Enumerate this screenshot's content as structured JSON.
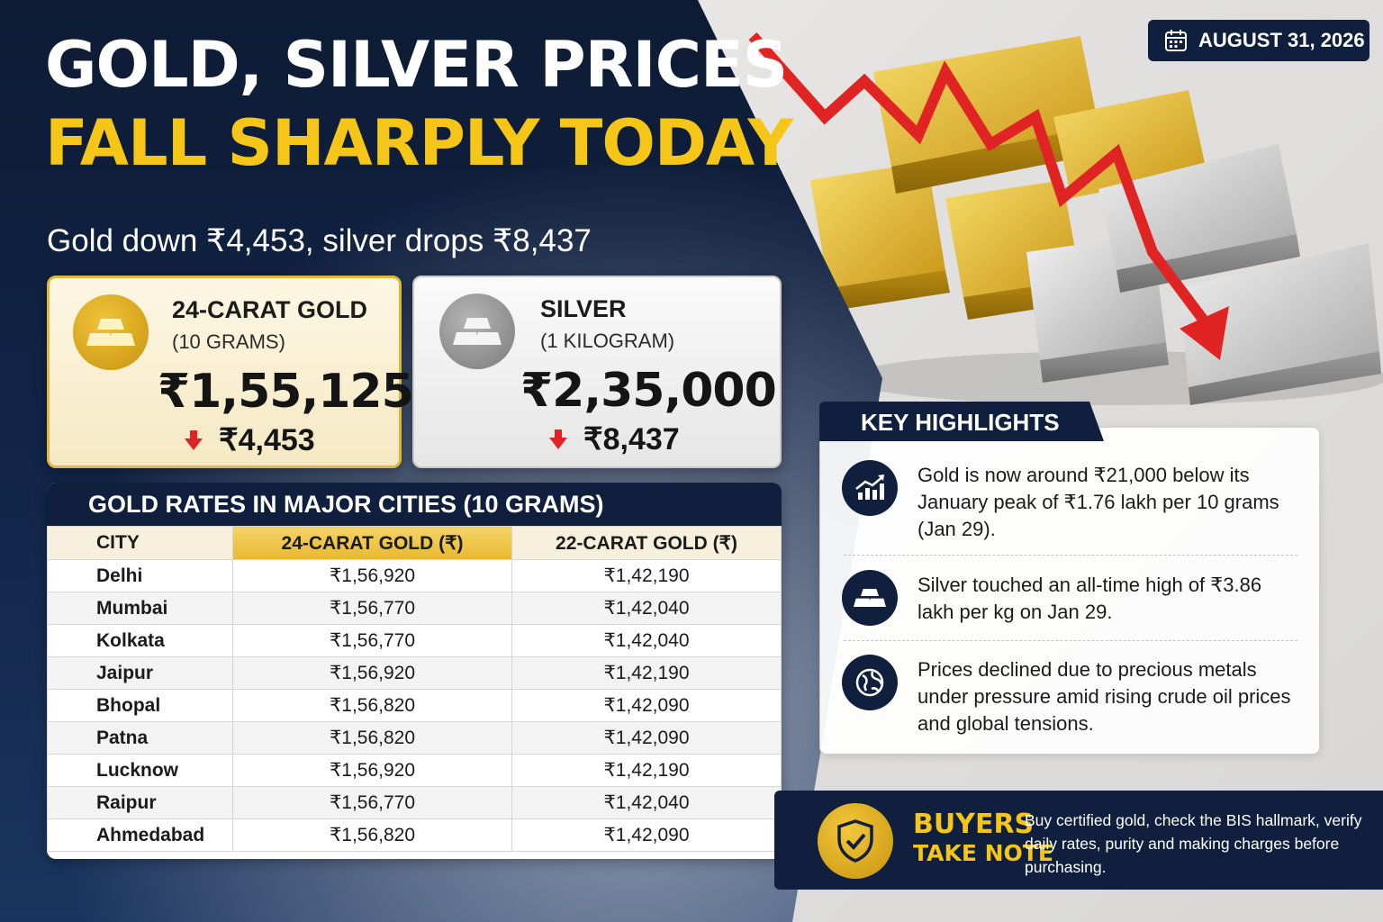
{
  "headline": {
    "line1": "GOLD, SILVER PRICES",
    "line2": "FALL SHARPLY TODAY",
    "subhead": "Gold down ₹4,453, silver drops ₹8,437"
  },
  "date": "AUGUST 31, 2026",
  "gold_card": {
    "title": "24-CARAT GOLD",
    "unit": "(10 GRAMS)",
    "price": "₹1,55,125",
    "change": "₹4,453"
  },
  "silver_card": {
    "title": "SILVER",
    "unit": "(1 KILOGRAM)",
    "price": "₹2,35,000",
    "change": "₹8,437"
  },
  "city_table": {
    "title": "GOLD RATES IN MAJOR CITIES (10 GRAMS)",
    "headers": [
      "CITY",
      "24-CARAT GOLD (₹)",
      "22-CARAT GOLD (₹)"
    ],
    "rows": [
      [
        "Delhi",
        "₹1,56,920",
        "₹1,42,190"
      ],
      [
        "Mumbai",
        "₹1,56,770",
        "₹1,42,040"
      ],
      [
        "Kolkata",
        "₹1,56,770",
        "₹1,42,040"
      ],
      [
        "Jaipur",
        "₹1,56,920",
        "₹1,42,190"
      ],
      [
        "Bhopal",
        "₹1,56,820",
        "₹1,42,090"
      ],
      [
        "Patna",
        "₹1,56,820",
        "₹1,42,090"
      ],
      [
        "Lucknow",
        "₹1,56,920",
        "₹1,42,190"
      ],
      [
        "Raipur",
        "₹1,56,770",
        "₹1,42,040"
      ],
      [
        "Ahmedabad",
        "₹1,56,820",
        "₹1,42,090"
      ]
    ]
  },
  "highlights": {
    "title": "KEY HIGHLIGHTS",
    "items": [
      {
        "icon": "chart-up-icon",
        "text": "Gold is now around ₹21,000 below its January peak of ₹1.76 lakh per 10 grams (Jan 29)."
      },
      {
        "icon": "gold-bars-icon",
        "text": "Silver touched an all-time high of ₹3.86 lakh per kg on Jan 29."
      },
      {
        "icon": "globe-icon",
        "text": "Prices declined due to precious metals under pressure amid rising crude oil prices and global tensions."
      }
    ]
  },
  "buyers": {
    "title_line1": "BUYERS",
    "title_line2": "TAKE NOTE",
    "text": "Buy certified gold, check the BIS hallmark, verify daily rates, purity and making charges before purchasing."
  },
  "colors": {
    "navy": "#0f1f3d",
    "gold": "#f5c518",
    "down_red": "#e02424"
  }
}
